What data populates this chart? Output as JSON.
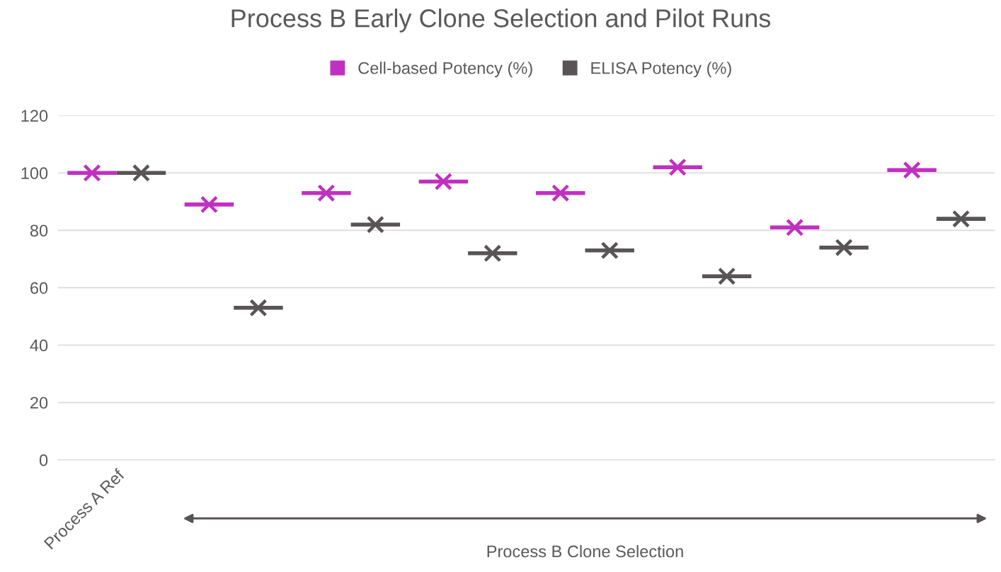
{
  "chart_data": {
    "type": "scatter",
    "title": "Process B Early Clone Selection and Pilot Runs",
    "categories": [
      "Process A Ref",
      null,
      null,
      null,
      null,
      null,
      null,
      null
    ],
    "series": [
      {
        "name": "Cell-based Potency (%)",
        "color": "#c030c0",
        "values": [
          100,
          89,
          93,
          97,
          93,
          102,
          81,
          101
        ]
      },
      {
        "name": "ELISA Potency (%)",
        "color": "#595455",
        "values": [
          100,
          53,
          82,
          72,
          73,
          64,
          74,
          84
        ]
      }
    ],
    "ylim": [
      0,
      120
    ],
    "yticks": [
      0,
      20,
      40,
      60,
      80,
      100,
      120
    ],
    "grid": "y",
    "legend": "top",
    "marker": "cross",
    "annotations": [
      "Process B Clone Selection"
    ]
  }
}
